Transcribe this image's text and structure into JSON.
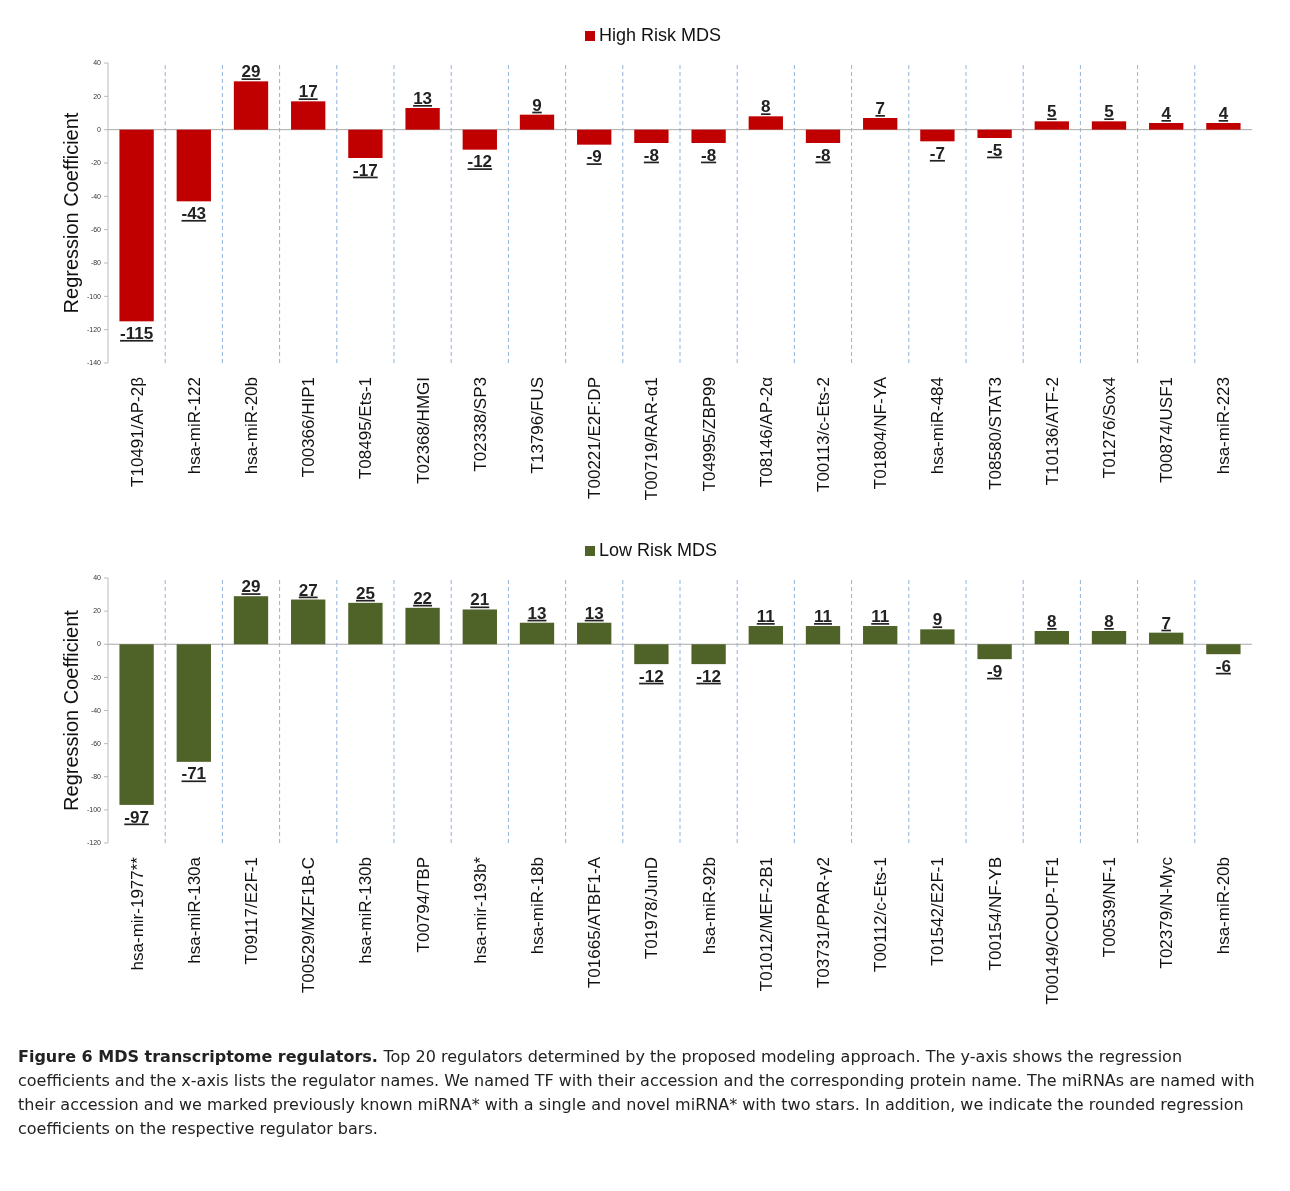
{
  "chart_data": [
    {
      "type": "bar",
      "ylabel": "Regression Coefficient",
      "categories": [
        "T10491/AP-2β",
        "hsa-miR-122",
        "hsa-miR-20b",
        "T00366/HIP1",
        "T08495/Ets-1",
        "T02368/HMGI",
        "T02338/SP3",
        "T13796/FUS",
        "T00221/E2F:DP",
        "T00719/RAR-α1",
        "T04995/ZBP99",
        "T08146/AP-2α",
        "T00113/c-Ets-2",
        "T01804/NF-YA",
        "hsa-miR-484",
        "T08580/STAT3",
        "T10136/ATF-2",
        "T01276/Sox4",
        "T00874/USF1",
        "hsa-miR-223"
      ],
      "series": [
        {
          "name": "High Risk MDS",
          "color": "#c00000",
          "values": [
            -115,
            -43,
            29,
            17,
            -17,
            13,
            -12,
            9,
            -9,
            -8,
            -8,
            8,
            -8,
            7,
            -7,
            -5,
            5,
            5,
            4,
            4
          ]
        }
      ],
      "ylim": [
        -140,
        40
      ],
      "yticks": [
        -140,
        -120,
        -100,
        -80,
        -60,
        -40,
        -20,
        0,
        20,
        40
      ],
      "grid": "x",
      "legend": "top",
      "data_labels": true
    },
    {
      "type": "bar",
      "ylabel": "Regression Coefficient",
      "categories": [
        "hsa-mir-1977**",
        "hsa-miR-130a",
        "T09117/E2F-1",
        "T00529/MZF1B-C",
        "hsa-miR-130b",
        "T00794/TBP",
        "hsa-mir-193b*",
        "hsa-miR-18b",
        "T01665/ATBF1-A",
        "T01978/JunD",
        "hsa-miR-92b",
        "T01012/MEF-2B1",
        "T03731/PPAR-γ2",
        "T00112/c-Ets-1",
        "T01542/E2F-1",
        "T00154/NF-YB",
        "T00149/COUP-TF1",
        "T00539/NF-1",
        "T02379/N-Myc",
        "hsa-miR-20b"
      ],
      "series": [
        {
          "name": "Low Risk MDS",
          "color": "#4f6228",
          "values": [
            -97,
            -71,
            29,
            27,
            25,
            22,
            21,
            13,
            13,
            -12,
            -12,
            11,
            11,
            11,
            9,
            -9,
            8,
            8,
            7,
            -6
          ]
        }
      ],
      "ylim": [
        -120,
        40
      ],
      "yticks": [
        -120,
        -100,
        -80,
        -60,
        -40,
        -20,
        0,
        20,
        40
      ],
      "grid": "x",
      "legend": "top",
      "data_labels": true,
      "annotations": [
        "Figure 6 MDS transcriptome regulators.",
        "Top 20 regulators determined by the proposed modeling approach. The y-axis shows the regression coefficients and the x-axis lists the regulator names. We named TF with their accession and the corresponding protein name. The miRNAs are named with their accession and we marked previously known miRNA* with a single and novel miRNA* with two stars. In addition, we indicate the rounded regression coefficients on the respective regulator bars."
      ]
    }
  ]
}
